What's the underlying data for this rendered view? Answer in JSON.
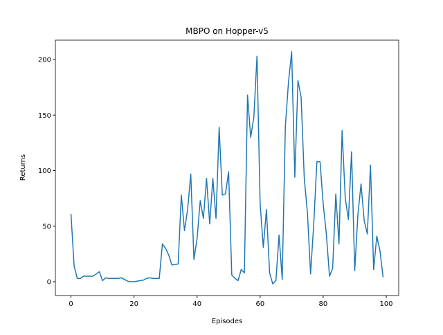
{
  "chart_data": {
    "type": "line",
    "title": "MBPO on Hopper-v5",
    "x_label": "Episodes",
    "y_label": "Returns",
    "x": [
      0,
      1,
      2,
      3,
      4,
      5,
      6,
      7,
      8,
      9,
      10,
      11,
      12,
      13,
      14,
      15,
      16,
      17,
      18,
      19,
      20,
      21,
      22,
      23,
      24,
      25,
      26,
      27,
      28,
      29,
      30,
      31,
      32,
      33,
      34,
      35,
      36,
      37,
      38,
      39,
      40,
      41,
      42,
      43,
      44,
      45,
      46,
      47,
      48,
      49,
      50,
      51,
      52,
      53,
      54,
      55,
      56,
      57,
      58,
      59,
      60,
      61,
      62,
      63,
      64,
      65,
      66,
      67,
      68,
      69,
      70,
      71,
      72,
      73,
      74,
      75,
      76,
      77,
      78,
      79,
      80,
      81,
      82,
      83,
      84,
      85,
      86,
      87,
      88,
      89,
      90,
      91,
      92,
      93,
      94,
      95,
      96,
      97,
      98,
      99
    ],
    "series": [
      {
        "name": "Returns",
        "color": "#1f77b4",
        "values": [
          61,
          14,
          3,
          3,
          5,
          5,
          5,
          5,
          7,
          9,
          1,
          3.5,
          3,
          3,
          3,
          3,
          3.5,
          2,
          0.5,
          0,
          0,
          0.5,
          1,
          1.5,
          3,
          3.5,
          3,
          3,
          3,
          34,
          30,
          24,
          15,
          15.5,
          16,
          78,
          46,
          65,
          97,
          20,
          39,
          73,
          57,
          93,
          52,
          93,
          57,
          139,
          78,
          79,
          99,
          6,
          3,
          1,
          11,
          8,
          168,
          130,
          148,
          203,
          70,
          31,
          65,
          8,
          -2,
          1,
          42,
          2,
          140,
          180,
          207,
          94,
          181,
          166,
          93,
          62,
          7,
          52,
          108,
          108,
          70,
          43,
          5,
          12,
          79,
          34,
          136,
          75,
          56,
          117,
          10,
          60,
          88,
          55,
          43,
          105,
          11,
          41,
          28,
          4
        ]
      }
    ],
    "xlim": [
      -4.95,
      103.95
    ],
    "ylim": [
      -12.45,
      217.45
    ],
    "xticks": [
      0,
      20,
      40,
      60,
      80,
      100
    ],
    "yticks": [
      0,
      50,
      100,
      150,
      200
    ]
  }
}
